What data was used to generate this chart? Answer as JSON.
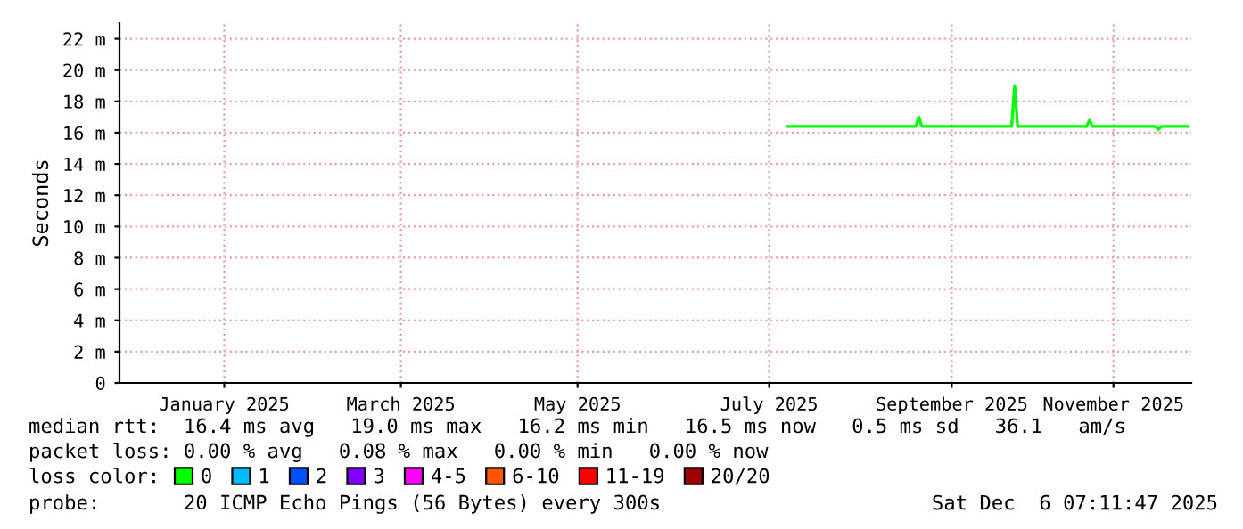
{
  "chart_data": {
    "type": "line",
    "ylabel": "Seconds",
    "xlim": [
      "2024-12-12",
      "2025-12-05"
    ],
    "xticks": [
      {
        "value": "2025-01-16",
        "label": "January 2025"
      },
      {
        "value": "2025-03-16",
        "label": "March 2025"
      },
      {
        "value": "2025-05-14",
        "label": "May 2025"
      },
      {
        "value": "2025-07-17",
        "label": "July 2025"
      },
      {
        "value": "2025-09-16",
        "label": "September 2025"
      },
      {
        "value": "2025-11-09",
        "label": "November 2025"
      }
    ],
    "ylim": [
      0,
      23
    ],
    "yticks": [
      0,
      {
        "value": 2,
        "label": "2 m"
      },
      {
        "value": 4,
        "label": "4 m"
      },
      {
        "value": 6,
        "label": "6 m"
      },
      {
        "value": 8,
        "label": "8 m"
      },
      {
        "value": 10,
        "label": "10 m"
      },
      {
        "value": 12,
        "label": "12 m"
      },
      {
        "value": 14,
        "label": "14 m"
      },
      {
        "value": 16,
        "label": "16 m"
      },
      {
        "value": 18,
        "label": "18 m"
      },
      {
        "value": 20,
        "label": "20 m"
      },
      {
        "value": 22,
        "label": "22 m"
      }
    ],
    "grid": true,
    "legend": "bottom",
    "marker": "none",
    "line_style": "solid",
    "series": [
      {
        "name": "0",
        "color": "#00ff00",
        "x": [
          "2025-07-23",
          "2025-09-04",
          "2025-09-05",
          "2025-09-06",
          "2025-10-06",
          "2025-10-07",
          "2025-10-08",
          "2025-10-31",
          "2025-11-01",
          "2025-11-02",
          "2025-11-23",
          "2025-11-24",
          "2025-11-25",
          "2025-12-04"
        ],
        "values": [
          16.4,
          16.4,
          17.0,
          16.4,
          16.4,
          19.0,
          16.4,
          16.4,
          16.8,
          16.4,
          16.4,
          16.2,
          16.4,
          16.4
        ]
      },
      {
        "name": "1",
        "color": "#00bbff"
      },
      {
        "name": "2",
        "color": "#0050ff"
      },
      {
        "name": "3",
        "color": "#8000ff"
      },
      {
        "name": "4-5",
        "color": "#ff00ff"
      },
      {
        "name": "6-10",
        "color": "#ff5500"
      },
      {
        "name": "11-19",
        "color": "#ff0000"
      },
      {
        "name": "20/20",
        "color": "#a10000"
      }
    ],
    "annotations": [
      "median rtt:  16.4 ms avg   19.0 ms max   16.2 ms min   16.5 ms now   0.5 ms sd   36.1   am/s",
      "packet loss: 0.00 % avg   0.08 % max   0.00 % min   0.00 % now",
      "loss color:",
      "probe:       20 ICMP Echo Pings (56 Bytes) every 300s",
      "Sat Dec  6 07:11:47 2025"
    ]
  }
}
